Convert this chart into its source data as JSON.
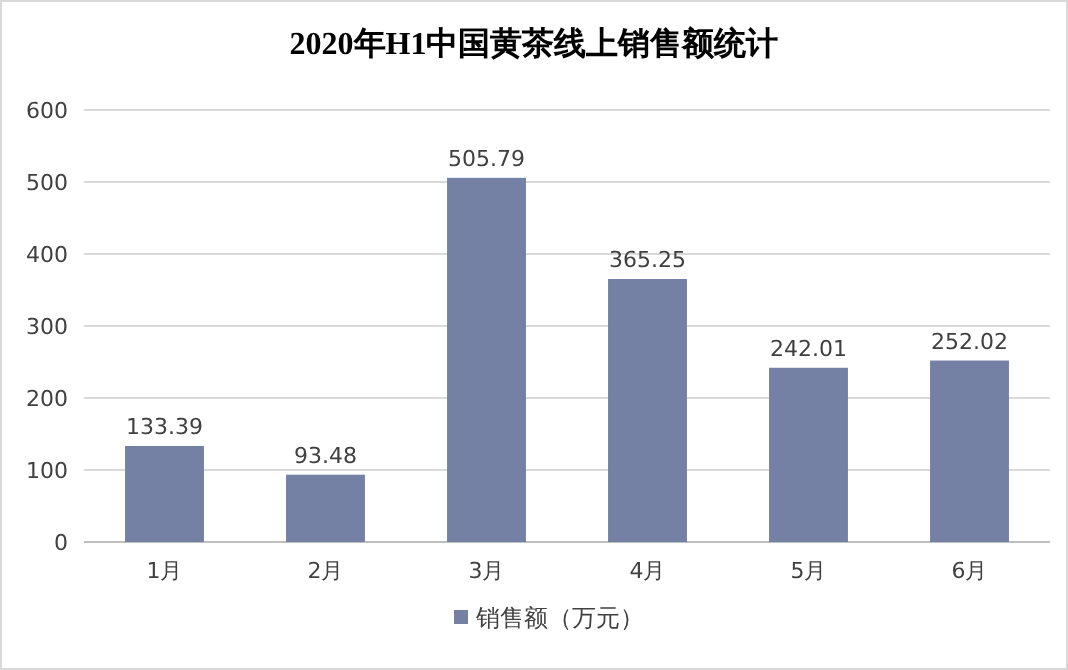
{
  "chart_data": {
    "type": "bar",
    "title": "2020年H1中国黄茶线上销售额统计",
    "categories": [
      "1月",
      "2月",
      "3月",
      "4月",
      "5月",
      "6月"
    ],
    "series": [
      {
        "name": "销售额（万元）",
        "color": "#7480a4",
        "values": [
          133.39,
          93.48,
          505.79,
          365.25,
          242.01,
          252.02
        ]
      }
    ],
    "ylim": [
      0,
      600
    ],
    "yticks": [
      0,
      100,
      200,
      300,
      400,
      500,
      600
    ],
    "grid": "y",
    "legend": "bottom",
    "data_labels": true
  }
}
